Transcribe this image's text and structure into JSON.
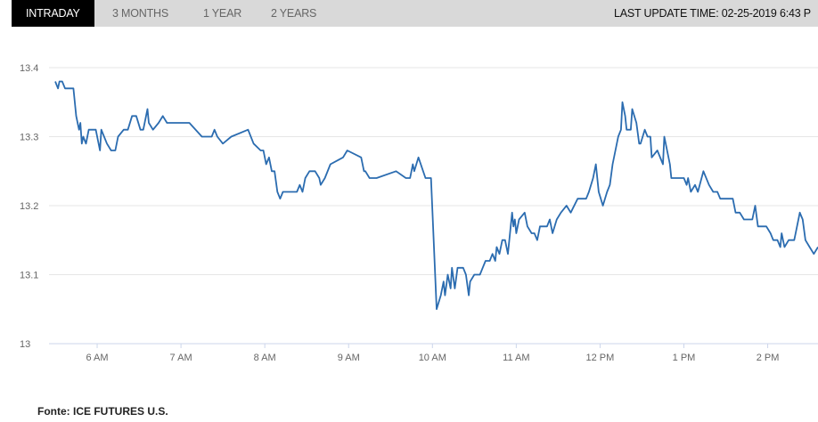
{
  "tabs": [
    {
      "label": "INTRADAY",
      "active": true
    },
    {
      "label": "3 MONTHS",
      "active": false
    },
    {
      "label": "1 YEAR",
      "active": false
    },
    {
      "label": "2 YEARS",
      "active": false
    }
  ],
  "last_update": "LAST UPDATE TIME: 02-25-2019 6:43 P",
  "footer": "Fonte: ICE FUTURES U.S.",
  "colors": {
    "line": "#2b6cb0",
    "grid": "#e6e6e6",
    "axis": "#ccd6eb",
    "active_tab": "#000000",
    "tab_bar": "#d9d9d9"
  },
  "chart_data": {
    "type": "line",
    "title": "",
    "xlabel": "",
    "ylabel": "",
    "xlim": [
      "05:30",
      "14:36"
    ],
    "ylim": [
      13,
      13.4
    ],
    "grid": true,
    "y_ticks": [
      "13",
      "13.1",
      "13.2",
      "13.3",
      "13.4"
    ],
    "x_ticks": [
      {
        "time": "06:00",
        "label": "6 AM"
      },
      {
        "time": "07:00",
        "label": "7 AM"
      },
      {
        "time": "08:00",
        "label": "8 AM"
      },
      {
        "time": "09:00",
        "label": "9 AM"
      },
      {
        "time": "10:00",
        "label": "10 AM"
      },
      {
        "time": "11:00",
        "label": "11 AM"
      },
      {
        "time": "12:00",
        "label": "12 PM"
      },
      {
        "time": "13:00",
        "label": "1 PM"
      },
      {
        "time": "14:00",
        "label": "2 PM"
      }
    ],
    "x": [
      "05:30",
      "05:32",
      "05:33",
      "05:35",
      "05:37",
      "05:43",
      "05:45",
      "05:47",
      "05:48",
      "05:49",
      "05:50",
      "05:52",
      "05:54",
      "05:59",
      "06:02",
      "06:03",
      "06:07",
      "06:10",
      "06:13",
      "06:15",
      "06:19",
      "06:22",
      "06:25",
      "06:28",
      "06:31",
      "06:33",
      "06:36",
      "06:37",
      "06:40",
      "06:44",
      "06:47",
      "06:50",
      "07:06",
      "07:15",
      "07:22",
      "07:24",
      "07:26",
      "07:30",
      "07:36",
      "07:48",
      "07:52",
      "07:57",
      "07:59",
      "08:01",
      "08:03",
      "08:05",
      "08:07",
      "08:09",
      "08:11",
      "08:13",
      "08:23",
      "08:25",
      "08:27",
      "08:29",
      "08:32",
      "08:36",
      "08:39",
      "08:40",
      "08:43",
      "08:47",
      "08:56",
      "08:59",
      "09:09",
      "09:11",
      "09:12",
      "09:15",
      "09:20",
      "09:34",
      "09:41",
      "09:44",
      "09:46",
      "09:47",
      "09:50",
      "09:55",
      "09:59",
      "10:03",
      "10:06",
      "10:08",
      "10:09",
      "10:11",
      "10:13",
      "10:14",
      "10:16",
      "10:18",
      "10:22",
      "10:24",
      "10:26",
      "10:27",
      "10:30",
      "10:34",
      "10:36",
      "10:38",
      "10:41",
      "10:43",
      "10:45",
      "10:46",
      "10:48",
      "10:50",
      "10:52",
      "10:54",
      "10:57",
      "10:58",
      "10:59",
      "11:00",
      "11:02",
      "11:06",
      "11:08",
      "11:11",
      "11:13",
      "11:15",
      "11:17",
      "11:22",
      "11:24",
      "11:26",
      "11:29",
      "11:32",
      "11:36",
      "11:39",
      "11:44",
      "11:50",
      "11:52",
      "11:55",
      "11:57",
      "11:59",
      "12:02",
      "12:05",
      "12:07",
      "12:09",
      "12:13",
      "12:15",
      "12:16",
      "12:18",
      "12:19",
      "12:22",
      "12:23",
      "12:26",
      "12:28",
      "12:29",
      "12:32",
      "12:34",
      "12:36",
      "12:37",
      "12:41",
      "12:45",
      "12:46",
      "12:50",
      "12:51",
      "13:00",
      "13:02",
      "13:03",
      "13:05",
      "13:08",
      "13:10",
      "13:14",
      "13:18",
      "13:21",
      "13:24",
      "13:26",
      "13:29",
      "13:35",
      "13:37",
      "13:40",
      "13:43",
      "13:49",
      "13:51",
      "13:53",
      "13:59",
      "14:02",
      "14:04",
      "14:07",
      "14:09",
      "14:10",
      "14:12",
      "14:15",
      "14:19",
      "14:20",
      "14:23",
      "14:25",
      "14:27",
      "14:30",
      "14:33",
      "14:36"
    ],
    "values": [
      13.38,
      13.37,
      13.38,
      13.38,
      13.37,
      13.37,
      13.33,
      13.31,
      13.32,
      13.29,
      13.3,
      13.29,
      13.31,
      13.31,
      13.28,
      13.31,
      13.29,
      13.28,
      13.28,
      13.3,
      13.31,
      13.31,
      13.33,
      13.33,
      13.31,
      13.31,
      13.34,
      13.32,
      13.31,
      13.32,
      13.33,
      13.32,
      13.32,
      13.3,
      13.3,
      13.31,
      13.3,
      13.29,
      13.3,
      13.31,
      13.29,
      13.28,
      13.28,
      13.26,
      13.27,
      13.25,
      13.25,
      13.22,
      13.21,
      13.22,
      13.22,
      13.23,
      13.22,
      13.24,
      13.25,
      13.25,
      13.24,
      13.23,
      13.24,
      13.26,
      13.27,
      13.28,
      13.27,
      13.25,
      13.25,
      13.24,
      13.24,
      13.25,
      13.24,
      13.24,
      13.26,
      13.25,
      13.27,
      13.24,
      13.24,
      13.05,
      13.07,
      13.09,
      13.07,
      13.1,
      13.08,
      13.11,
      13.08,
      13.11,
      13.11,
      13.1,
      13.07,
      13.09,
      13.1,
      13.1,
      13.11,
      13.12,
      13.12,
      13.13,
      13.12,
      13.14,
      13.13,
      13.15,
      13.15,
      13.13,
      13.19,
      13.17,
      13.18,
      13.16,
      13.18,
      13.19,
      13.17,
      13.16,
      13.16,
      13.15,
      13.17,
      13.17,
      13.18,
      13.16,
      13.18,
      13.19,
      13.2,
      13.19,
      13.21,
      13.21,
      13.22,
      13.24,
      13.26,
      13.22,
      13.2,
      13.22,
      13.23,
      13.26,
      13.3,
      13.31,
      13.35,
      13.33,
      13.31,
      13.31,
      13.34,
      13.32,
      13.29,
      13.29,
      13.31,
      13.3,
      13.3,
      13.27,
      13.28,
      13.26,
      13.3,
      13.26,
      13.24,
      13.24,
      13.23,
      13.24,
      13.22,
      13.23,
      13.22,
      13.25,
      13.23,
      13.22,
      13.22,
      13.21,
      13.21,
      13.21,
      13.19,
      13.19,
      13.18,
      13.18,
      13.2,
      13.17,
      13.17,
      13.16,
      13.15,
      13.15,
      13.14,
      13.16,
      13.14,
      13.15,
      13.15,
      13.16,
      13.19,
      13.18,
      13.15,
      13.14,
      13.13,
      13.14
    ]
  }
}
